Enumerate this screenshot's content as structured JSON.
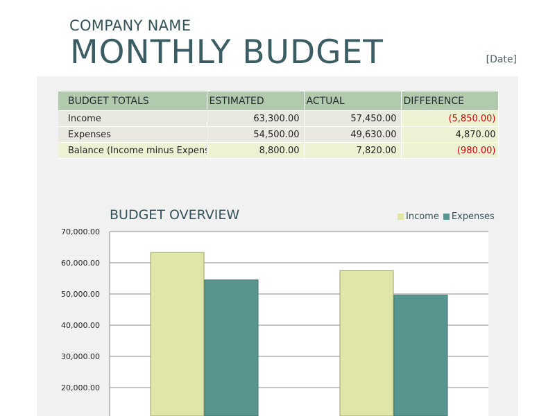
{
  "header": {
    "company": "COMPANY NAME",
    "title": "MONTHLY BUDGET",
    "date": "[Date]"
  },
  "totals": {
    "headers": [
      "BUDGET TOTALS",
      "ESTIMATED",
      "ACTUAL",
      "DIFFERENCE"
    ],
    "rows": [
      {
        "label": "Income",
        "estimated": "63,300.00",
        "actual": "57,450.00",
        "difference": "(5,850.00)",
        "negative": true
      },
      {
        "label": "Expenses",
        "estimated": "54,500.00",
        "actual": "49,630.00",
        "difference": "4,870.00",
        "negative": false
      },
      {
        "label": "Balance (Income minus Expenses)",
        "estimated": "8,800.00",
        "actual": "7,820.00",
        "difference": "(980.00)",
        "negative": true
      }
    ]
  },
  "colors": {
    "income": "#dfe6a8",
    "expenses": "#58958f",
    "negative": "#cc0000",
    "header_bg": "#b1c9ad"
  },
  "chart_data": {
    "type": "bar",
    "title": "BUDGET OVERVIEW",
    "categories": [
      "",
      ""
    ],
    "series": [
      {
        "name": "Income",
        "values": [
          63300,
          57450
        ]
      },
      {
        "name": "Expenses",
        "values": [
          54500,
          49630
        ]
      }
    ],
    "ylim": [
      0,
      70000
    ],
    "yticks": [
      "70,000.00",
      "60,000.00",
      "50,000.00",
      "40,000.00",
      "30,000.00",
      "20,000.00"
    ],
    "legend": "top-right",
    "grid": true
  }
}
